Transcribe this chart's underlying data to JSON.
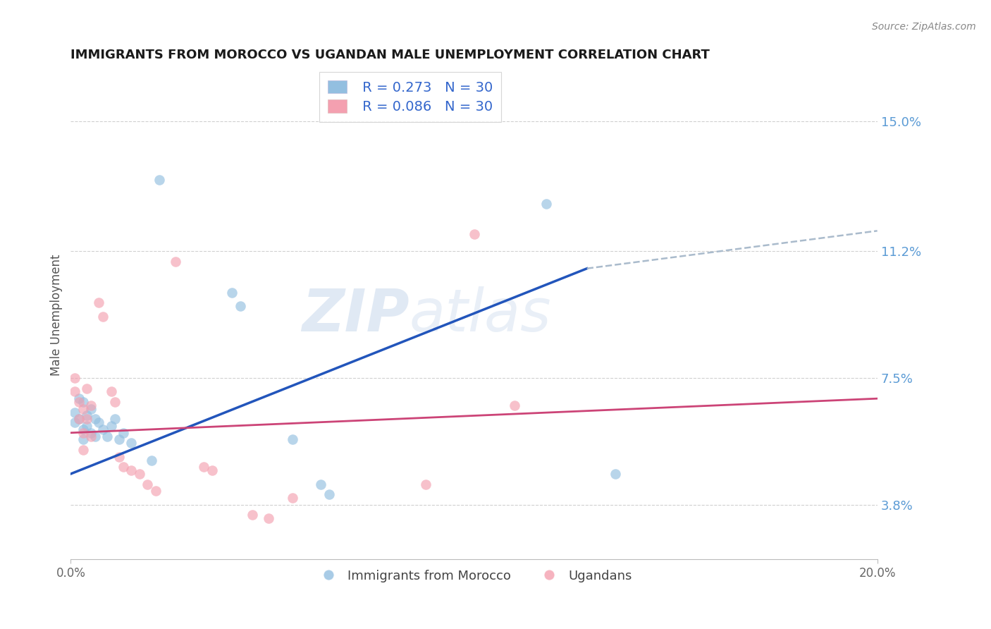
{
  "title": "IMMIGRANTS FROM MOROCCO VS UGANDAN MALE UNEMPLOYMENT CORRELATION CHART",
  "source": "Source: ZipAtlas.com",
  "ylabel": "Male Unemployment",
  "xlim": [
    0.0,
    0.2
  ],
  "ylim": [
    0.022,
    0.165
  ],
  "yticks": [
    0.038,
    0.075,
    0.112,
    0.15
  ],
  "ytick_labels": [
    "3.8%",
    "7.5%",
    "11.2%",
    "15.0%"
  ],
  "xtick_labels": [
    "0.0%",
    "20.0%"
  ],
  "legend_r1": "R = 0.273",
  "legend_n1": "N = 30",
  "legend_r2": "R = 0.086",
  "legend_n2": "N = 30",
  "title_color": "#1a1a1a",
  "source_color": "#888888",
  "tick_color_right": "#5b9bd5",
  "grid_color": "#d0d0d0",
  "watermark_zip": "ZIP",
  "watermark_atlas": "atlas",
  "blue_color": "#93bfe0",
  "pink_color": "#f4a0b0",
  "blue_line_color": "#2255bb",
  "pink_line_color": "#cc4477",
  "dashed_line_color": "#aabbcc",
  "scatter_blue": [
    [
      0.001,
      0.065
    ],
    [
      0.001,
      0.062
    ],
    [
      0.002,
      0.069
    ],
    [
      0.002,
      0.063
    ],
    [
      0.003,
      0.068
    ],
    [
      0.003,
      0.06
    ],
    [
      0.003,
      0.057
    ],
    [
      0.004,
      0.064
    ],
    [
      0.004,
      0.061
    ],
    [
      0.005,
      0.066
    ],
    [
      0.005,
      0.059
    ],
    [
      0.006,
      0.063
    ],
    [
      0.006,
      0.058
    ],
    [
      0.007,
      0.062
    ],
    [
      0.008,
      0.06
    ],
    [
      0.009,
      0.058
    ],
    [
      0.01,
      0.061
    ],
    [
      0.011,
      0.063
    ],
    [
      0.012,
      0.057
    ],
    [
      0.013,
      0.059
    ],
    [
      0.015,
      0.056
    ],
    [
      0.02,
      0.051
    ],
    [
      0.022,
      0.133
    ],
    [
      0.04,
      0.1
    ],
    [
      0.042,
      0.096
    ],
    [
      0.055,
      0.057
    ],
    [
      0.062,
      0.044
    ],
    [
      0.064,
      0.041
    ],
    [
      0.118,
      0.126
    ],
    [
      0.135,
      0.047
    ]
  ],
  "scatter_pink": [
    [
      0.001,
      0.075
    ],
    [
      0.001,
      0.071
    ],
    [
      0.002,
      0.068
    ],
    [
      0.002,
      0.063
    ],
    [
      0.003,
      0.066
    ],
    [
      0.003,
      0.059
    ],
    [
      0.003,
      0.054
    ],
    [
      0.004,
      0.072
    ],
    [
      0.004,
      0.063
    ],
    [
      0.005,
      0.067
    ],
    [
      0.005,
      0.058
    ],
    [
      0.007,
      0.097
    ],
    [
      0.008,
      0.093
    ],
    [
      0.01,
      0.071
    ],
    [
      0.011,
      0.068
    ],
    [
      0.012,
      0.052
    ],
    [
      0.013,
      0.049
    ],
    [
      0.015,
      0.048
    ],
    [
      0.017,
      0.047
    ],
    [
      0.019,
      0.044
    ],
    [
      0.021,
      0.042
    ],
    [
      0.026,
      0.109
    ],
    [
      0.033,
      0.049
    ],
    [
      0.035,
      0.048
    ],
    [
      0.045,
      0.035
    ],
    [
      0.049,
      0.034
    ],
    [
      0.055,
      0.04
    ],
    [
      0.088,
      0.044
    ],
    [
      0.1,
      0.117
    ],
    [
      0.11,
      0.067
    ]
  ],
  "blue_line": [
    [
      0.0,
      0.047
    ],
    [
      0.128,
      0.107
    ]
  ],
  "pink_line": [
    [
      0.0,
      0.059
    ],
    [
      0.2,
      0.069
    ]
  ],
  "dashed_line": [
    [
      0.128,
      0.107
    ],
    [
      0.2,
      0.118
    ]
  ]
}
